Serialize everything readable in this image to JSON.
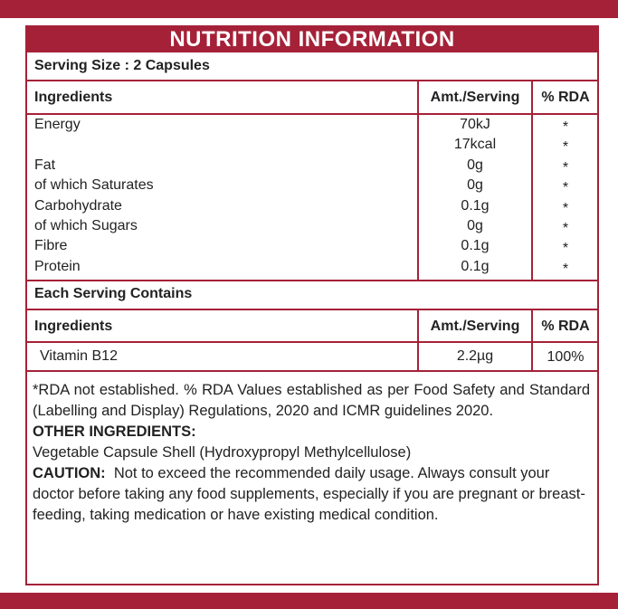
{
  "title": "NUTRITION INFORMATION",
  "serving_size": "Serving Size : 2 Capsules",
  "table1": {
    "header": [
      "Ingredients",
      "Amt./Serving",
      "% RDA"
    ],
    "rows": [
      {
        "name": "Energy",
        "amount": "70kJ",
        "rda": "*"
      },
      {
        "amount": "17kcal",
        "rda": "*"
      },
      {
        "name": "Fat",
        "amount": "0g",
        "rda": "*"
      },
      {
        "name": "of which Saturates",
        "amount": "0g",
        "rda": "*"
      },
      {
        "name": "Carbohydrate",
        "amount": "0.1g",
        "rda": "*"
      },
      {
        "name": "of which Sugars",
        "amount": "0g",
        "rda": "*"
      },
      {
        "name": "Fibre",
        "amount": "0.1g",
        "rda": "*"
      },
      {
        "name": "Protein",
        "amount": "0.1g",
        "rda": "*"
      }
    ]
  },
  "section2_title": "Each Serving Contains",
  "table2": {
    "header": [
      "Ingredients",
      "Amt./Serving",
      "% RDA"
    ],
    "rows": [
      {
        "name": "Vitamin B12",
        "amount": "2.2µg",
        "rda": "100%"
      }
    ]
  },
  "footer": {
    "note": "*RDA not established. % RDA Values established as per Food Safety and Standard (Labelling and Display) Regulations, 2020 and ICMR guidelines 2020.",
    "other_heading": "OTHER INGREDIENTS:",
    "other_text": "Vegetable Capsule Shell (Hydroxypropyl Methylcellulose)",
    "caution_label": "CAUTION:",
    "caution_text": "Not to exceed the recommended daily usage. Always consult your doctor before taking any food supplements, especially if you are pregnant or breast-feeding, taking medication or have existing medical condition."
  }
}
